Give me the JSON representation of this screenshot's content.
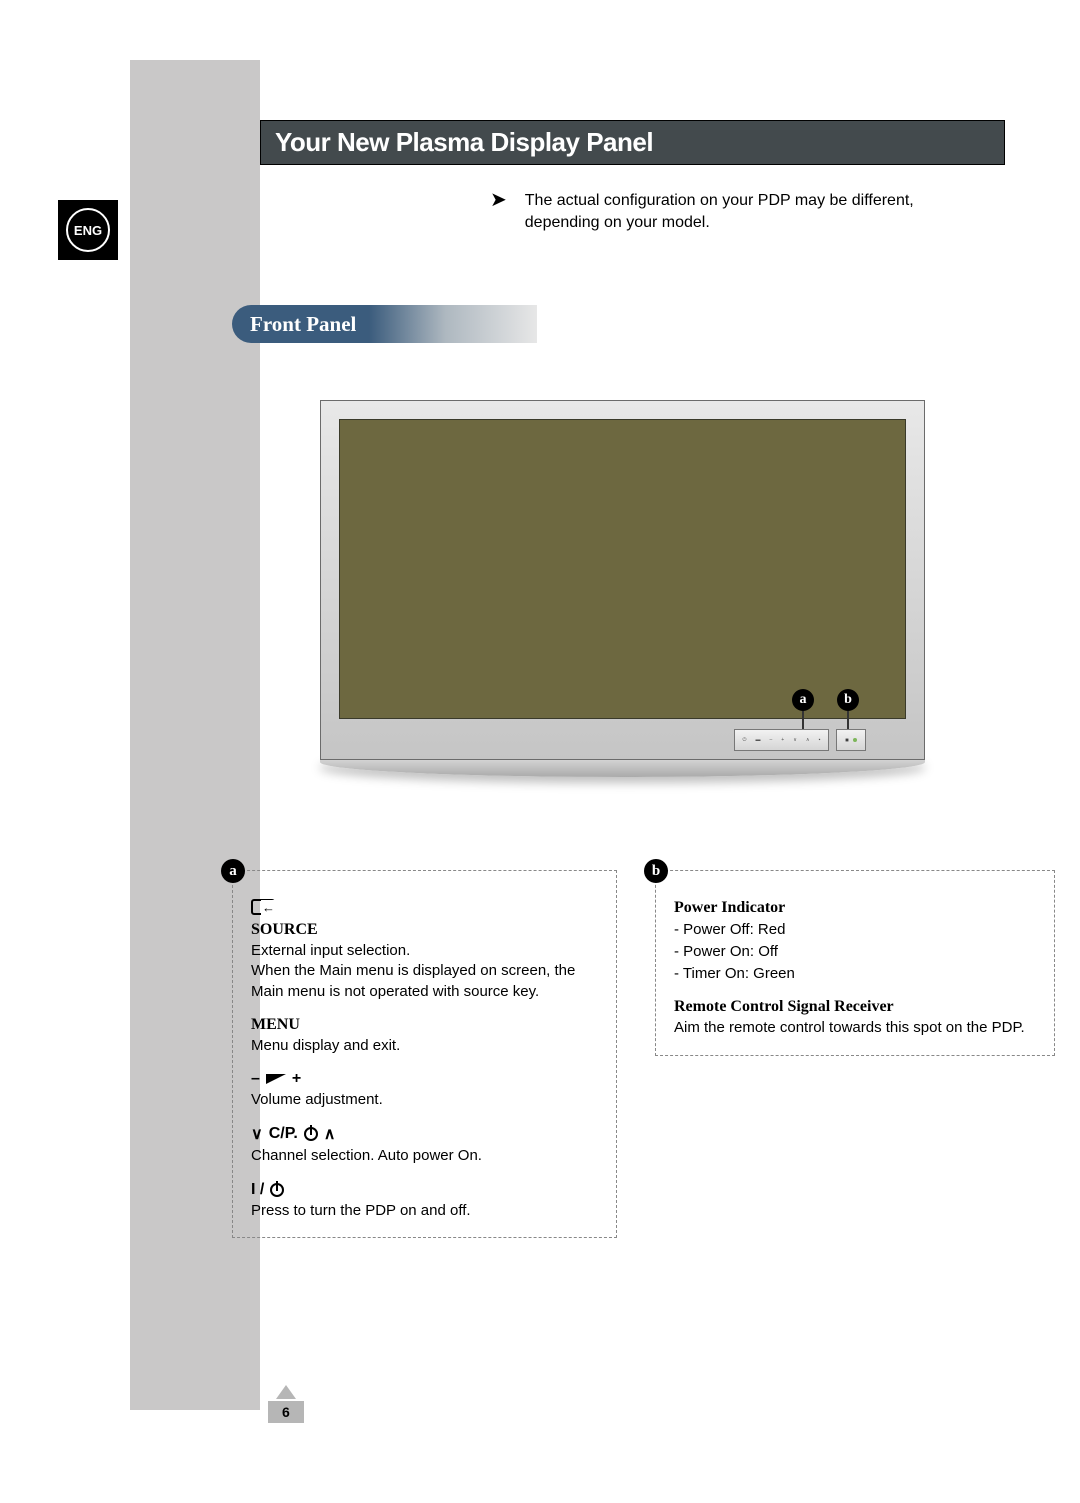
{
  "lang_badge": "ENG",
  "page_title": "Your New Plasma Display Panel",
  "note_text": "The actual configuration on your PDP may be different, depending on your model.",
  "section_heading": "Front Panel",
  "markers": {
    "a": "a",
    "b": "b"
  },
  "callout_a": {
    "badge": "a",
    "source": {
      "heading": "SOURCE",
      "text": "External input selection.\nWhen the Main menu is displayed on screen, the Main menu is not operated with source key."
    },
    "menu": {
      "heading": "MENU",
      "text": "Menu display and exit."
    },
    "volume": {
      "minus": "–",
      "plus": "+",
      "text": "Volume adjustment."
    },
    "channel": {
      "label": "C/P.",
      "text": "Channel selection. Auto power On."
    },
    "power": {
      "label": "I /",
      "text": "Press to turn the PDP on and off."
    }
  },
  "callout_b": {
    "badge": "b",
    "power_indicator": {
      "heading": "Power Indicator",
      "items": [
        "- Power Off: Red",
        "- Power On: Off",
        "- Timer On: Green"
      ]
    },
    "remote_receiver": {
      "heading": "Remote Control Signal Receiver",
      "text": "Aim the remote control towards this spot on the PDP."
    }
  },
  "page_number": "6",
  "colors": {
    "title_bar_bg": "#434a4d",
    "gray_col": "#c9c8c8",
    "section_grad_start": "#3b5c7d",
    "tv_screen": "#6d6840",
    "page_num_bg": "#b6b6b6"
  }
}
